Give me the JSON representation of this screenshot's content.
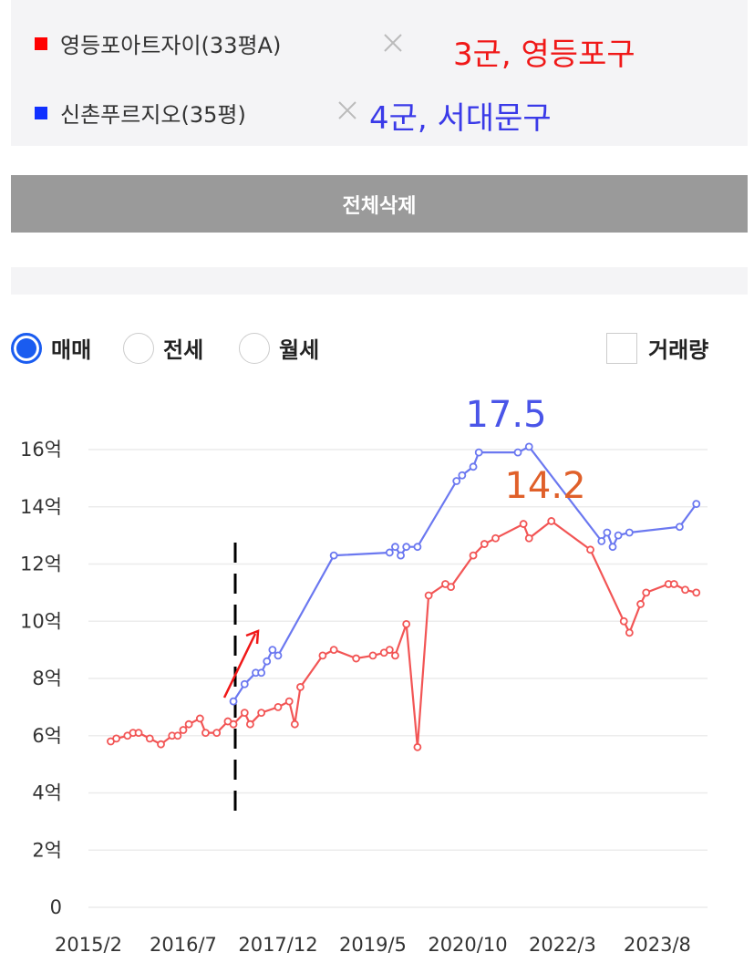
{
  "delete_all_button": "전체삭제",
  "tabs": [
    "매매",
    "전세",
    "월세"
  ],
  "volume_checkbox": "거래량",
  "legend_notes": [
    "3군, 영등포구",
    "4군, 서대문구"
  ],
  "chart_data": {
    "type": "line",
    "series": [
      {
        "name": "영등포아트자이(33평A)",
        "color": "#f25555",
        "legend_color": "#ff0000",
        "x": [
          "2015/6",
          "2015/7",
          "2015/9",
          "2015/10",
          "2015/11",
          "2016/1",
          "2016/3",
          "2016/5",
          "2016/6",
          "2016/7",
          "2016/8",
          "2016/10",
          "2016/11",
          "2017/1",
          "2017/3",
          "2017/4",
          "2017/6",
          "2017/7",
          "2017/9",
          "2017/12",
          "2018/2",
          "2018/3",
          "2018/4",
          "2018/8",
          "2018/10",
          "2019/2",
          "2019/5",
          "2019/7",
          "2019/8",
          "2019/9",
          "2019/11",
          "2020/1",
          "2020/3",
          "2020/6",
          "2020/7",
          "2020/11",
          "2021/1",
          "2021/3",
          "2021/8",
          "2021/9",
          "2022/1",
          "2022/8",
          "2023/2",
          "2023/3",
          "2023/5",
          "2023/6",
          "2023/10",
          "2023/11",
          "2024/1",
          "2024/3"
        ],
        "values": [
          5.8,
          5.9,
          6.0,
          6.1,
          6.1,
          5.9,
          5.7,
          6.0,
          6.0,
          6.2,
          6.4,
          6.6,
          6.1,
          6.1,
          6.5,
          6.4,
          6.8,
          6.4,
          6.8,
          7.0,
          7.2,
          6.4,
          7.7,
          8.8,
          9.0,
          8.7,
          8.8,
          8.9,
          9.0,
          8.8,
          9.9,
          5.6,
          10.9,
          11.3,
          11.2,
          12.3,
          12.7,
          12.9,
          13.4,
          12.9,
          13.5,
          12.5,
          10.0,
          9.6,
          10.6,
          11.0,
          11.3,
          11.3,
          11.1,
          11.0
        ]
      },
      {
        "name": "신촌푸르지오(35평)",
        "color": "#6b78f0",
        "legend_color": "#1030ff",
        "x": [
          "2017/4",
          "2017/6",
          "2017/8",
          "2017/9",
          "2017/10",
          "2017/11",
          "2017/12",
          "2018/10",
          "2019/8",
          "2019/9",
          "2019/10",
          "2019/11",
          "2020/1",
          "2020/8",
          "2020/9",
          "2020/11",
          "2020/12",
          "2021/7",
          "2021/9",
          "2022/10",
          "2022/11",
          "2022/12",
          "2023/1",
          "2023/3",
          "2023/12",
          "2024/3"
        ],
        "values": [
          7.2,
          7.8,
          8.2,
          8.2,
          8.6,
          9.0,
          8.8,
          12.3,
          12.4,
          12.6,
          12.3,
          12.6,
          12.6,
          14.9,
          15.1,
          15.4,
          15.9,
          15.9,
          16.1,
          12.8,
          13.1,
          12.6,
          13.0,
          13.1,
          13.3,
          14.1
        ]
      }
    ],
    "annotations": [
      {
        "text": "17.5",
        "color": "#4a55e8"
      },
      {
        "text": "14.2",
        "color": "#e0602a"
      }
    ],
    "xlim": [
      "2015/2",
      "2024/5"
    ],
    "xticks": [
      "2015/2",
      "2016/7",
      "2017/12",
      "2019/5",
      "2020/10",
      "2022/3",
      "2023/8"
    ],
    "ylim": [
      0,
      16
    ],
    "yticks": [
      0,
      {
        "value": 2,
        "label": "2억"
      },
      {
        "value": 4,
        "label": "4억"
      },
      {
        "value": 6,
        "label": "6억"
      },
      {
        "value": 8,
        "label": "8억"
      },
      {
        "value": 10,
        "label": "10억"
      },
      {
        "value": 12,
        "label": "12억"
      },
      {
        "value": 14,
        "label": "14억"
      },
      {
        "value": 16,
        "label": "16억"
      }
    ],
    "grid": true
  }
}
